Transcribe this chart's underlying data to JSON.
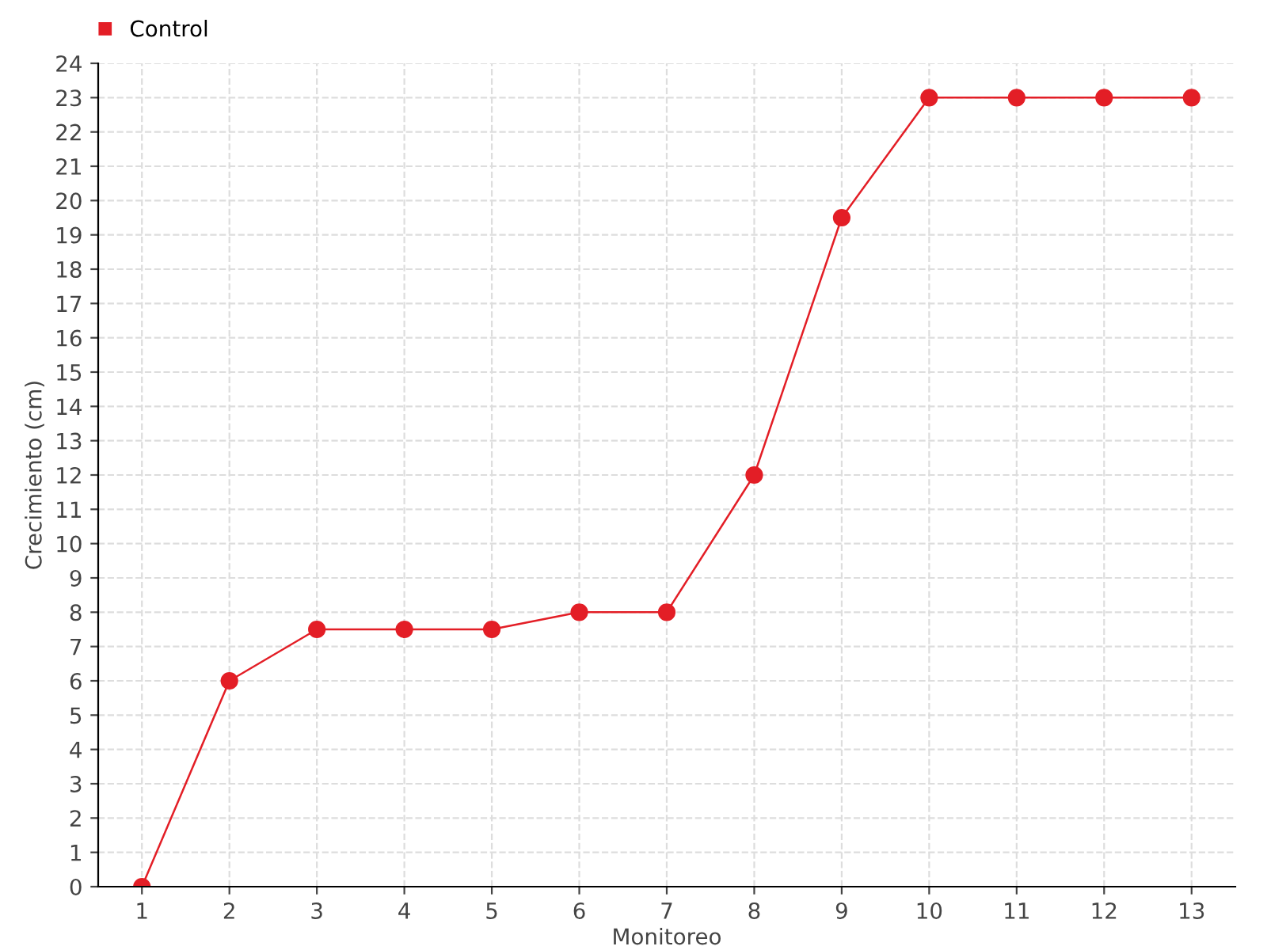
{
  "chart_data": {
    "type": "line",
    "xlabel": "Monitoreo",
    "ylabel": "Crecimiento (cm)",
    "categories": [
      "1",
      "2",
      "3",
      "4",
      "5",
      "6",
      "7",
      "8",
      "9",
      "10",
      "11",
      "12",
      "13"
    ],
    "series": [
      {
        "name": "Control",
        "color": "#e31e26",
        "values": [
          0,
          6,
          7.5,
          7.5,
          7.5,
          8,
          8,
          12,
          19.5,
          23,
          23,
          23,
          23
        ]
      }
    ],
    "ylim": [
      0,
      24
    ],
    "yticks": [
      0,
      1,
      2,
      3,
      4,
      5,
      6,
      7,
      8,
      9,
      10,
      11,
      12,
      13,
      14,
      15,
      16,
      17,
      18,
      19,
      20,
      21,
      22,
      23,
      24
    ],
    "grid": true,
    "legend": "top left",
    "marker": "circle",
    "line_style": "solid"
  }
}
